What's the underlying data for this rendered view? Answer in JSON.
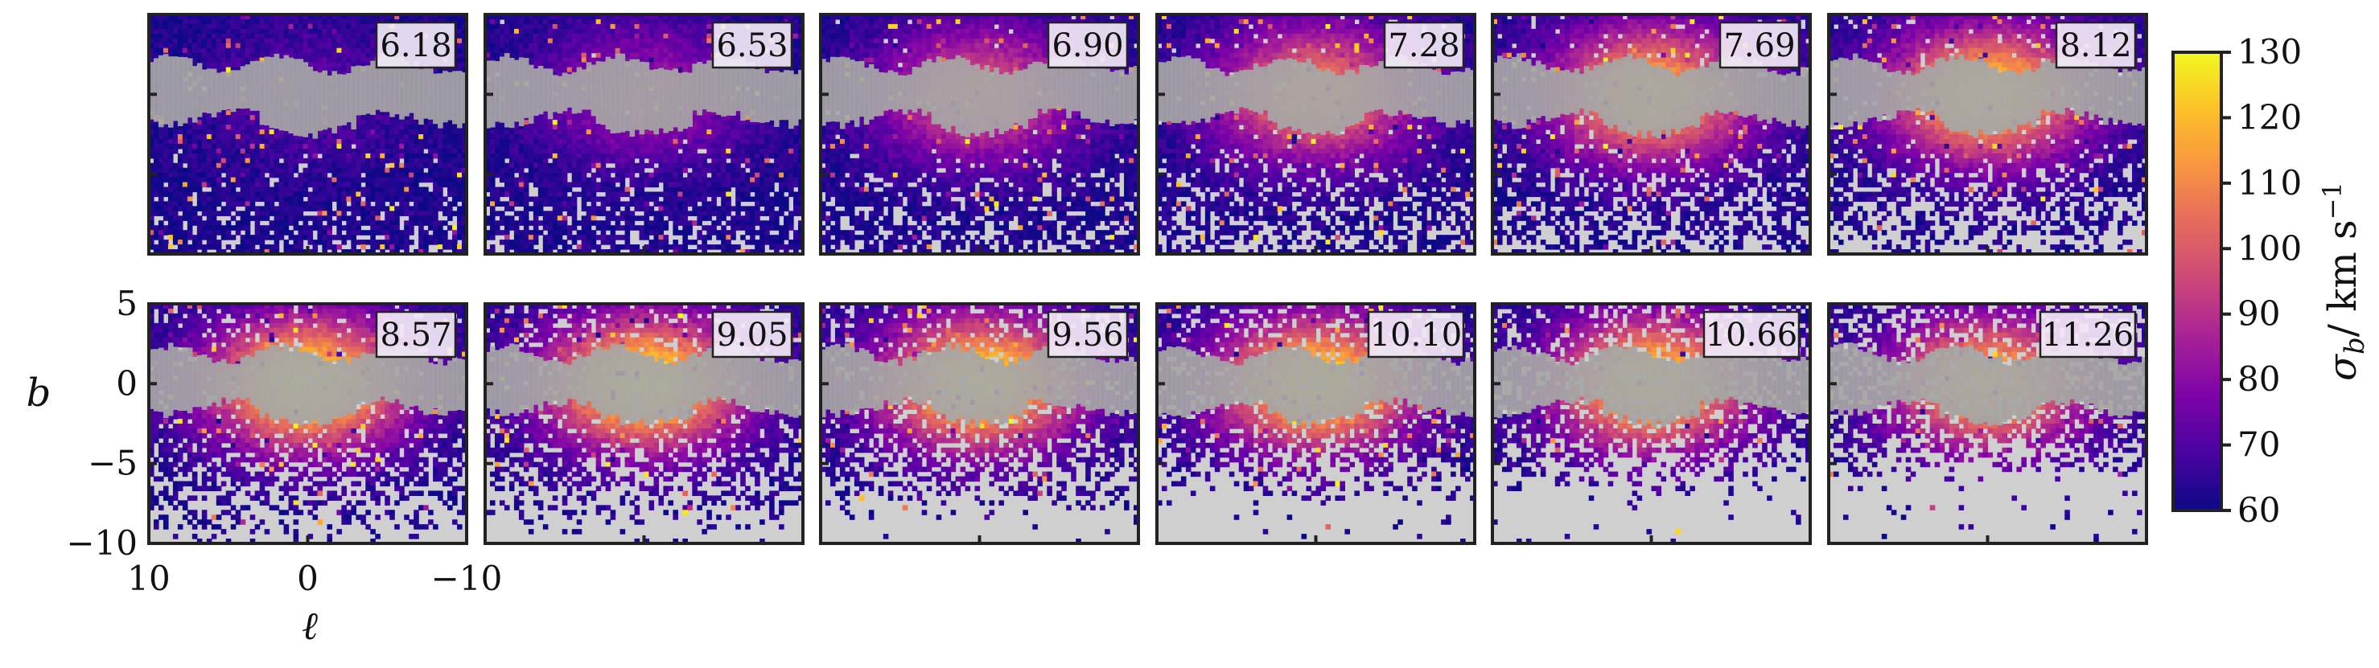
{
  "chart_data": {
    "type": "heatmap",
    "layout": {
      "rows": 2,
      "cols": 6
    },
    "panel_labels": [
      "6.18",
      "6.53",
      "6.90",
      "7.28",
      "7.69",
      "8.12",
      "8.57",
      "9.05",
      "9.56",
      "10.10",
      "10.66",
      "11.26"
    ],
    "panel_peak_sigma": [
      72,
      85,
      100,
      110,
      120,
      124,
      128,
      129,
      128,
      127,
      125,
      120
    ],
    "xlabel": "ℓ",
    "ylabel": "b",
    "x_ticks": [
      {
        "value": 10,
        "label": "10"
      },
      {
        "value": 0,
        "label": "0"
      },
      {
        "value": -10,
        "label": "−10"
      }
    ],
    "y_ticks": [
      {
        "value": 5,
        "label": "5"
      },
      {
        "value": 0,
        "label": "0"
      },
      {
        "value": -5,
        "label": "−5"
      },
      {
        "value": -10,
        "label": "−10"
      }
    ],
    "xlim": [
      10,
      -10
    ],
    "ylim": [
      -10,
      5
    ],
    "colorbar": {
      "label": "σ_b / km s⁻¹",
      "label_parts": {
        "symbol": "σ",
        "sub": "b",
        "unit": "/ km s",
        "sup": "−1"
      },
      "range": [
        60,
        130
      ],
      "ticks": [
        "130",
        "120",
        "110",
        "100",
        "90",
        "80",
        "70",
        "60"
      ],
      "tick_values": [
        130,
        120,
        110,
        100,
        90,
        80,
        70,
        60
      ],
      "colormap": "plasma"
    },
    "masked_band_color": "#a6a6a6",
    "empty_bin_color": "#cfcfcf"
  }
}
